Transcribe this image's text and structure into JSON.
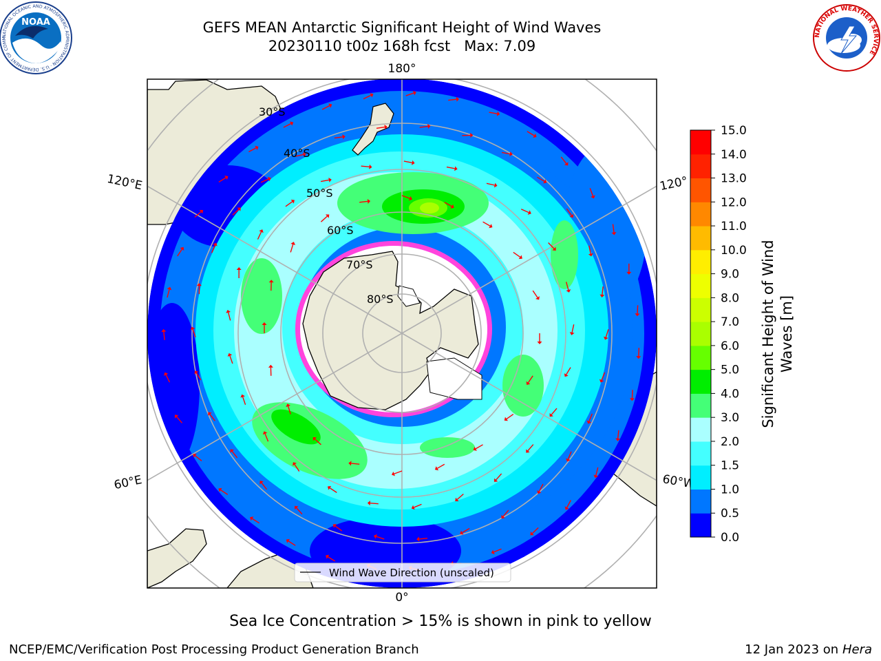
{
  "title": {
    "line1": "GEFS MEAN Antarctic Significant Height of Wind Waves",
    "line2": "20230110 t00z 168h fcst",
    "max": "Max: 7.09"
  },
  "logos": {
    "noaa_text": "NOAA",
    "noaa_ring_text": "NATIONAL OCEANIC AND ATMOSPHERIC ADMINISTRATION · U.S. DEPARTMENT OF COMMERCE",
    "nws_ring_text": "NATIONAL WEATHER SERVICE"
  },
  "map": {
    "longitude_labels": {
      "top": "180°",
      "bottom": "0°",
      "upper_left": "120°E",
      "upper_right": "120°",
      "lower_left": "60°E",
      "lower_right": "60°W"
    },
    "latitude_labels": [
      "30°S",
      "40°S",
      "50°S",
      "60°S",
      "70°S",
      "80°S"
    ],
    "legend": "Wind Wave Direction (unscaled)"
  },
  "colorbar": {
    "label_line1": "Significant Height of Wind",
    "label_line2": "Waves [m]",
    "ticks": [
      "0.0",
      "0.5",
      "1.0",
      "1.5",
      "2.0",
      "3.0",
      "4.0",
      "5.0",
      "6.0",
      "7.0",
      "8.0",
      "9.0",
      "10.0",
      "11.0",
      "12.0",
      "13.0",
      "14.0",
      "15.0"
    ],
    "colors": [
      "#0000ff",
      "#0077ff",
      "#00eeff",
      "#44ffff",
      "#aaffff",
      "#44ff77",
      "#00ee00",
      "#66ff00",
      "#aaff00",
      "#ccff00",
      "#eeff00",
      "#ffee00",
      "#ffbb00",
      "#ff8800",
      "#ff5500",
      "#ff2200",
      "#ff0000"
    ]
  },
  "colors": {
    "land": "#ecebd9",
    "ice_pink": "#ff44dd",
    "arrow": "#ff0000",
    "grid": "#b0b0b0"
  },
  "note": "Sea Ice Concentration > 15% is shown in pink to yellow",
  "footer": {
    "org": "NCEP/EMC/Verification Post Processing Product Generation Branch",
    "date": "12 Jan 2023 on ",
    "machine": "Hera"
  }
}
